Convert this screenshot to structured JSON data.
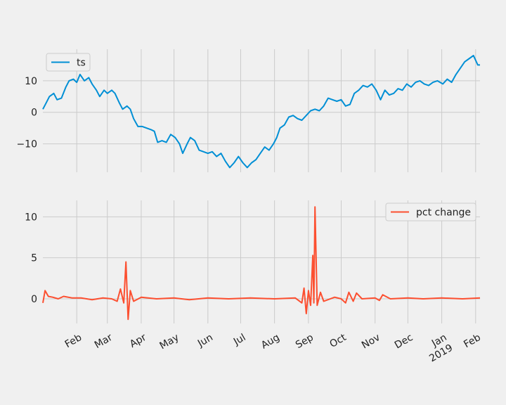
{
  "chart_data": [
    {
      "type": "line",
      "x_start": "2018-01-01",
      "x_end": "2019-02-05",
      "xlim": [
        "2018-01-01",
        "2019-02-05"
      ],
      "ylim": [
        -19,
        20
      ],
      "yticks": [
        -10,
        0,
        10
      ],
      "grid": true,
      "legend_position": "top-left",
      "series": [
        {
          "name": "ts",
          "color": "#008fd5",
          "points": [
            [
              "2018-01-01",
              1
            ],
            [
              "2018-01-04",
              3
            ],
            [
              "2018-01-07",
              5
            ],
            [
              "2018-01-11",
              6
            ],
            [
              "2018-01-14",
              4
            ],
            [
              "2018-01-18",
              4.5
            ],
            [
              "2018-01-22",
              8
            ],
            [
              "2018-01-25",
              10
            ],
            [
              "2018-01-29",
              10.5
            ],
            [
              "2018-02-01",
              9.5
            ],
            [
              "2018-02-04",
              12
            ],
            [
              "2018-02-08",
              10
            ],
            [
              "2018-02-12",
              11
            ],
            [
              "2018-02-15",
              9
            ],
            [
              "2018-02-19",
              7
            ],
            [
              "2018-02-22",
              5
            ],
            [
              "2018-02-26",
              7
            ],
            [
              "2018-03-01",
              6
            ],
            [
              "2018-03-05",
              7
            ],
            [
              "2018-03-08",
              6
            ],
            [
              "2018-03-12",
              3
            ],
            [
              "2018-03-15",
              1
            ],
            [
              "2018-03-19",
              2
            ],
            [
              "2018-03-22",
              1
            ],
            [
              "2018-03-25",
              -2
            ],
            [
              "2018-03-29",
              -4.5
            ],
            [
              "2018-04-02",
              -4.5
            ],
            [
              "2018-04-06",
              -5
            ],
            [
              "2018-04-10",
              -5.5
            ],
            [
              "2018-04-13",
              -6
            ],
            [
              "2018-04-16",
              -9.5
            ],
            [
              "2018-04-20",
              -9
            ],
            [
              "2018-04-24",
              -9.5
            ],
            [
              "2018-04-28",
              -7
            ],
            [
              "2018-05-02",
              -8
            ],
            [
              "2018-05-06",
              -10
            ],
            [
              "2018-05-09",
              -13
            ],
            [
              "2018-05-13",
              -10
            ],
            [
              "2018-05-16",
              -8
            ],
            [
              "2018-05-20",
              -9
            ],
            [
              "2018-05-24",
              -12
            ],
            [
              "2018-05-28",
              -12.5
            ],
            [
              "2018-06-01",
              -13
            ],
            [
              "2018-06-05",
              -12.5
            ],
            [
              "2018-06-09",
              -14
            ],
            [
              "2018-06-13",
              -13
            ],
            [
              "2018-06-17",
              -15.5
            ],
            [
              "2018-06-21",
              -17.5
            ],
            [
              "2018-06-25",
              -16
            ],
            [
              "2018-06-29",
              -14
            ],
            [
              "2018-07-03",
              -16
            ],
            [
              "2018-07-07",
              -17.5
            ],
            [
              "2018-07-11",
              -16
            ],
            [
              "2018-07-15",
              -15
            ],
            [
              "2018-07-19",
              -13
            ],
            [
              "2018-07-23",
              -11
            ],
            [
              "2018-07-27",
              -12
            ],
            [
              "2018-07-31",
              -10
            ],
            [
              "2018-08-03",
              -8
            ],
            [
              "2018-08-06",
              -5
            ],
            [
              "2018-08-10",
              -4
            ],
            [
              "2018-08-14",
              -1.5
            ],
            [
              "2018-08-18",
              -1
            ],
            [
              "2018-08-22",
              -2
            ],
            [
              "2018-08-26",
              -2.5
            ],
            [
              "2018-08-30",
              -1
            ],
            [
              "2018-09-03",
              0.5
            ],
            [
              "2018-09-07",
              1
            ],
            [
              "2018-09-11",
              0.5
            ],
            [
              "2018-09-15",
              2
            ],
            [
              "2018-09-19",
              4.5
            ],
            [
              "2018-09-23",
              4
            ],
            [
              "2018-09-27",
              3.5
            ],
            [
              "2018-10-01",
              4
            ],
            [
              "2018-10-05",
              2
            ],
            [
              "2018-10-09",
              2.5
            ],
            [
              "2018-10-13",
              6
            ],
            [
              "2018-10-17",
              7
            ],
            [
              "2018-10-21",
              8.5
            ],
            [
              "2018-10-25",
              8
            ],
            [
              "2018-10-29",
              9
            ],
            [
              "2018-11-02",
              7
            ],
            [
              "2018-11-06",
              4
            ],
            [
              "2018-11-10",
              7
            ],
            [
              "2018-11-14",
              5.5
            ],
            [
              "2018-11-18",
              6
            ],
            [
              "2018-11-22",
              7.5
            ],
            [
              "2018-11-26",
              7
            ],
            [
              "2018-11-30",
              9
            ],
            [
              "2018-12-04",
              8
            ],
            [
              "2018-12-08",
              9.5
            ],
            [
              "2018-12-12",
              10
            ],
            [
              "2018-12-16",
              9
            ],
            [
              "2018-12-20",
              8.5
            ],
            [
              "2018-12-24",
              9.5
            ],
            [
              "2018-12-28",
              10
            ],
            [
              "2019-01-02",
              9
            ],
            [
              "2019-01-06",
              10.5
            ],
            [
              "2019-01-10",
              9.5
            ],
            [
              "2019-01-14",
              12
            ],
            [
              "2019-01-18",
              14
            ],
            [
              "2019-01-22",
              16
            ],
            [
              "2019-01-26",
              17
            ],
            [
              "2019-01-30",
              18
            ],
            [
              "2019-02-03",
              15
            ],
            [
              "2019-02-05",
              15
            ]
          ]
        }
      ]
    },
    {
      "type": "line",
      "x_start": "2018-01-01",
      "x_end": "2019-02-05",
      "xlim": [
        "2018-01-01",
        "2019-02-05"
      ],
      "ylim": [
        -3,
        12
      ],
      "yticks": [
        0,
        5,
        10
      ],
      "grid": true,
      "legend_position": "top-right",
      "xtick_labels": [
        "Feb",
        "Mar",
        "Apr",
        "May",
        "Jun",
        "Jul",
        "Aug",
        "Sep",
        "Oct",
        "Nov",
        "Dec",
        "Jan\n2019",
        "Feb"
      ],
      "series": [
        {
          "name": "pct change",
          "color": "#fc4f30",
          "points": [
            [
              "2018-01-01",
              -0.5
            ],
            [
              "2018-01-03",
              1
            ],
            [
              "2018-01-06",
              0.3
            ],
            [
              "2018-01-10",
              0.2
            ],
            [
              "2018-01-15",
              0
            ],
            [
              "2018-01-20",
              0.3
            ],
            [
              "2018-01-28",
              0.1
            ],
            [
              "2018-02-05",
              0.1
            ],
            [
              "2018-02-15",
              -0.1
            ],
            [
              "2018-02-25",
              0.1
            ],
            [
              "2018-03-05",
              0
            ],
            [
              "2018-03-10",
              -0.3
            ],
            [
              "2018-03-13",
              1.2
            ],
            [
              "2018-03-16",
              -0.5
            ],
            [
              "2018-03-18",
              4.5
            ],
            [
              "2018-03-20",
              -2.5
            ],
            [
              "2018-03-22",
              1
            ],
            [
              "2018-03-25",
              -0.3
            ],
            [
              "2018-04-01",
              0.2
            ],
            [
              "2018-04-15",
              0
            ],
            [
              "2018-05-01",
              0.1
            ],
            [
              "2018-05-15",
              -0.1
            ],
            [
              "2018-06-01",
              0.1
            ],
            [
              "2018-06-20",
              0
            ],
            [
              "2018-07-10",
              0.1
            ],
            [
              "2018-08-01",
              0
            ],
            [
              "2018-08-20",
              0.1
            ],
            [
              "2018-08-26",
              -0.5
            ],
            [
              "2018-08-28",
              1.3
            ],
            [
              "2018-08-30",
              -1.8
            ],
            [
              "2018-09-01",
              1
            ],
            [
              "2018-09-03",
              -0.8
            ],
            [
              "2018-09-05",
              5.3
            ],
            [
              "2018-09-06",
              -0.5
            ],
            [
              "2018-09-07",
              11.2
            ],
            [
              "2018-09-09",
              -0.8
            ],
            [
              "2018-09-12",
              0.8
            ],
            [
              "2018-09-15",
              -0.3
            ],
            [
              "2018-09-25",
              0.2
            ],
            [
              "2018-10-01",
              0
            ],
            [
              "2018-10-05",
              -0.5
            ],
            [
              "2018-10-08",
              0.8
            ],
            [
              "2018-10-12",
              -0.3
            ],
            [
              "2018-10-15",
              0.7
            ],
            [
              "2018-10-20",
              0
            ],
            [
              "2018-11-01",
              0.1
            ],
            [
              "2018-11-05",
              -0.2
            ],
            [
              "2018-11-08",
              0.5
            ],
            [
              "2018-11-15",
              0
            ],
            [
              "2018-12-01",
              0.1
            ],
            [
              "2018-12-15",
              0
            ],
            [
              "2019-01-01",
              0.1
            ],
            [
              "2019-01-20",
              0
            ],
            [
              "2019-02-05",
              0.1
            ]
          ]
        }
      ]
    }
  ]
}
